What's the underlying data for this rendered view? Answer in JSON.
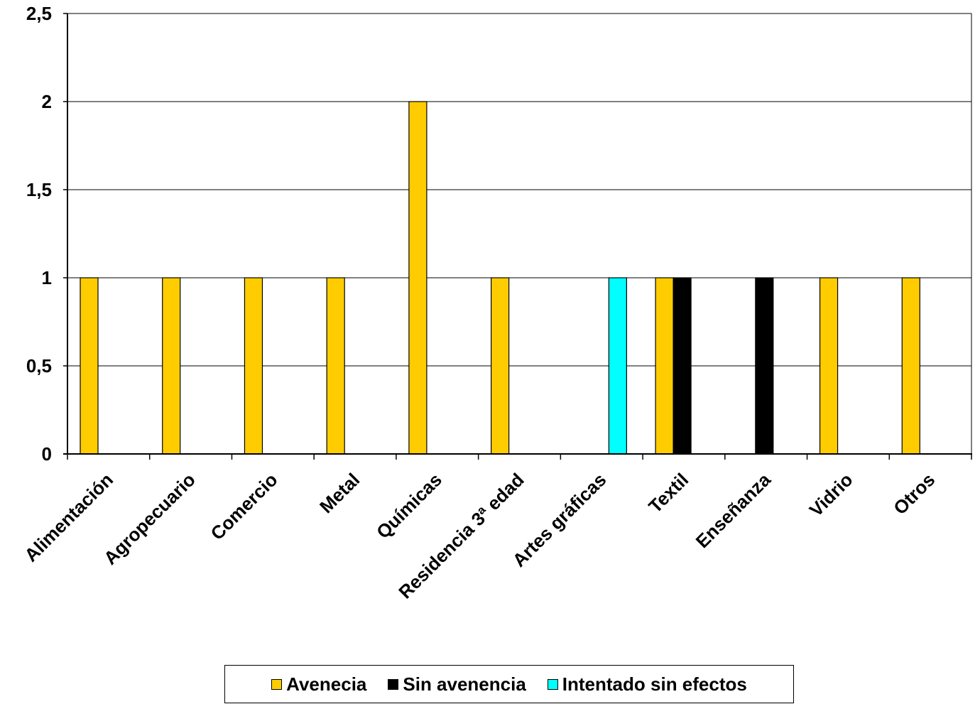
{
  "chart_data": {
    "type": "bar",
    "title": "",
    "xlabel": "",
    "ylabel": "",
    "categories": [
      "Alimentación",
      "Agropecuario",
      "Comercio",
      "Metal",
      "Químicas",
      "Residencia 3ª edad",
      "Artes gráficas",
      "Textil",
      "Enseñanza",
      "Vidrio",
      "Otros"
    ],
    "series": [
      {
        "name": "Avenecia",
        "color": "#FFCC00",
        "values": [
          1,
          1,
          1,
          1,
          2,
          1,
          0,
          1,
          0,
          1,
          1
        ]
      },
      {
        "name": "Sin avenencia",
        "color": "#000000",
        "values": [
          0,
          0,
          0,
          0,
          0,
          0,
          0,
          1,
          1,
          0,
          0
        ]
      },
      {
        "name": "Intentado sin efectos",
        "color": "#00FFFF",
        "values": [
          0,
          0,
          0,
          0,
          0,
          0,
          1,
          0,
          0,
          0,
          0
        ]
      }
    ],
    "ylim": [
      0,
      2.5
    ],
    "yticks": [
      0,
      0.5,
      1,
      1.5,
      2,
      2.5
    ],
    "ytick_labels": [
      "0",
      "0,5",
      "1",
      "1,5",
      "2",
      "2,5"
    ],
    "grid": true,
    "legend_position": "bottom"
  }
}
